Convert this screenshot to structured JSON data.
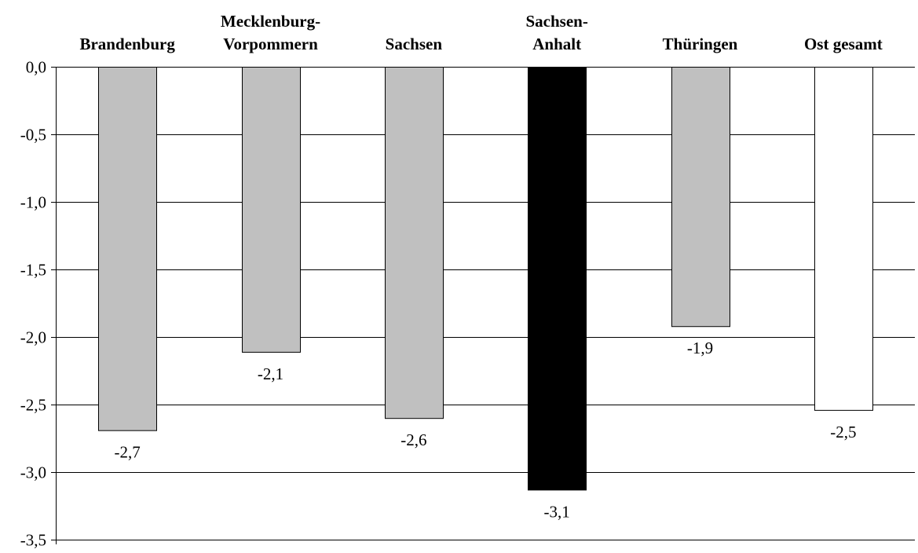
{
  "chart_data": {
    "type": "bar",
    "categories": [
      [
        "Brandenburg"
      ],
      [
        "Mecklenburg-",
        "Vorpommern"
      ],
      [
        "Sachsen"
      ],
      [
        "Sachsen-",
        "Anhalt"
      ],
      [
        "Thüringen"
      ],
      [
        "Ost gesamt"
      ]
    ],
    "values": [
      -2.69,
      -2.11,
      -2.6,
      -3.13,
      -1.92,
      -2.54
    ],
    "data_labels": [
      "-2,7",
      "-2,1",
      "-2,6",
      "-3,1",
      "-1,9",
      "-2,5"
    ],
    "bar_colors": [
      "#c0c0c0",
      "#c0c0c0",
      "#c0c0c0",
      "#000000",
      "#c0c0c0",
      "#ffffff"
    ],
    "y_ticks": [
      0,
      -0.5,
      -1.0,
      -1.5,
      -2.0,
      -2.5,
      -3.0,
      -3.5
    ],
    "y_tick_labels": [
      "0,0",
      "-0,5",
      "-1,0",
      "-1,5",
      "-2,0",
      "-2,5",
      "-3,0",
      "-3,5"
    ],
    "ylim": [
      -3.5,
      0
    ],
    "grid": true,
    "category_labels_position": "top",
    "legend": "none"
  }
}
